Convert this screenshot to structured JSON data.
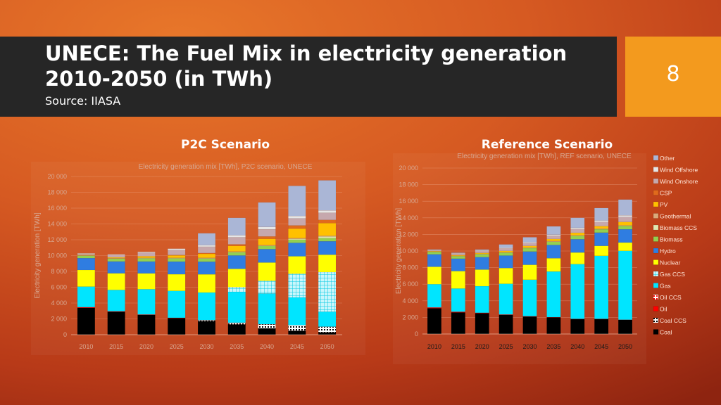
{
  "slide": {
    "title": "UNECE: The Fuel Mix in electricity generation 2010-2050  (in TWh)",
    "source": "Source: IIASA",
    "page_number": "8"
  },
  "headings": {
    "left": "P2C Scenario",
    "right": "Reference Scenario"
  },
  "colors": {
    "title_bar": "#262626",
    "page_box": "#f39a1e"
  },
  "legend": [
    {
      "label": "Other",
      "color": "#aab6d6"
    },
    {
      "label": "Wind Offshore",
      "color": "#e6e6e6"
    },
    {
      "label": "Wind Onshore",
      "color": "#c6a8ad"
    },
    {
      "label": "CSP",
      "color": "#e06a1c"
    },
    {
      "label": "PV",
      "color": "#ffc000"
    },
    {
      "label": "Geothermal",
      "color": "#d9a97a"
    },
    {
      "label": "Biomass CCS",
      "color": "#dfe6b0"
    },
    {
      "label": "Biomass",
      "color": "#92d050"
    },
    {
      "label": "Hydro",
      "color": "#2f7de1"
    },
    {
      "label": "Nuclear",
      "color": "#ffff00"
    },
    {
      "label": "Gas CCS",
      "color": "#9fe8f0"
    },
    {
      "label": "Gas",
      "color": "#00e5ff"
    },
    {
      "label": "Oil CCS",
      "color": "#ffb3b3"
    },
    {
      "label": "Oil",
      "color": "#ff0000"
    },
    {
      "label": "Coal CCS",
      "color": "#d0d0d0"
    },
    {
      "label": "Coal",
      "color": "#000000"
    }
  ],
  "chart_data": [
    {
      "type": "bar",
      "stacked": true,
      "title": "Electricity generation mix [TWh], P2C scenario, UNECE",
      "ylabel": "Electricity generation [TWh]",
      "ylim": [
        0,
        20000
      ],
      "yticks": [
        "0",
        "2 000",
        "4 000",
        "6 000",
        "8 000",
        "10 000",
        "12 000",
        "14 000",
        "16 000",
        "18 000",
        "20 000"
      ],
      "categories": [
        "2010",
        "2015",
        "2020",
        "2025",
        "2030",
        "2035",
        "2040",
        "2045",
        "2050"
      ],
      "series": [
        {
          "name": "Coal",
          "values": [
            3400,
            2900,
            2500,
            2100,
            1700,
            1300,
            800,
            500,
            300
          ]
        },
        {
          "name": "Coal CCS",
          "values": [
            0,
            0,
            0,
            0,
            100,
            200,
            500,
            700,
            700
          ]
        },
        {
          "name": "Oil",
          "values": [
            80,
            60,
            50,
            40,
            30,
            20,
            20,
            10,
            10
          ]
        },
        {
          "name": "Oil CCS",
          "values": [
            0,
            0,
            0,
            0,
            0,
            0,
            0,
            0,
            0
          ]
        },
        {
          "name": "Gas",
          "values": [
            2600,
            2700,
            3200,
            3400,
            3500,
            3900,
            3900,
            3500,
            1900
          ]
        },
        {
          "name": "Gas CCS",
          "values": [
            0,
            0,
            0,
            0,
            0,
            600,
            1600,
            3000,
            5000
          ]
        },
        {
          "name": "Nuclear",
          "values": [
            2100,
            2100,
            2000,
            2100,
            2300,
            2300,
            2300,
            2200,
            2200
          ]
        },
        {
          "name": "Hydro",
          "values": [
            1500,
            1500,
            1500,
            1600,
            1600,
            1700,
            1700,
            1700,
            1700
          ]
        },
        {
          "name": "Biomass",
          "values": [
            300,
            350,
            400,
            400,
            400,
            400,
            400,
            400,
            400
          ]
        },
        {
          "name": "Biomass CCS",
          "values": [
            0,
            0,
            0,
            0,
            0,
            0,
            0,
            100,
            200
          ]
        },
        {
          "name": "Geothermal",
          "values": [
            50,
            60,
            70,
            80,
            90,
            100,
            100,
            100,
            100
          ]
        },
        {
          "name": "PV",
          "values": [
            50,
            100,
            200,
            300,
            500,
            700,
            800,
            1200,
            1600
          ]
        },
        {
          "name": "CSP",
          "values": [
            0,
            0,
            0,
            50,
            100,
            200,
            300,
            400,
            400
          ]
        },
        {
          "name": "Wind Onshore",
          "values": [
            150,
            300,
            450,
            650,
            800,
            900,
            900,
            900,
            900
          ]
        },
        {
          "name": "Wind Offshore",
          "values": [
            50,
            80,
            100,
            150,
            200,
            250,
            300,
            300,
            300
          ]
        },
        {
          "name": "Other",
          "values": [
            0,
            0,
            0,
            0,
            1500,
            2200,
            3100,
            3800,
            3800
          ]
        }
      ]
    },
    {
      "type": "bar",
      "stacked": true,
      "title": "Electricity generation mix [TWh], REF scenario, UNECE",
      "ylabel": "Electricity generation [TWh]",
      "ylim": [
        0,
        20000
      ],
      "yticks": [
        "0",
        "2 000",
        "4 000",
        "6 000",
        "8 000",
        "10 000",
        "12 000",
        "14 000",
        "16 000",
        "18 000",
        "20 000"
      ],
      "categories": [
        "2010",
        "2015",
        "2020",
        "2025",
        "2030",
        "2035",
        "2040",
        "2045",
        "2050"
      ],
      "series": [
        {
          "name": "Coal",
          "values": [
            3100,
            2600,
            2500,
            2300,
            2100,
            2000,
            1800,
            1800,
            1700
          ]
        },
        {
          "name": "Coal CCS",
          "values": [
            0,
            0,
            0,
            0,
            0,
            0,
            0,
            0,
            0
          ]
        },
        {
          "name": "Oil",
          "values": [
            100,
            80,
            60,
            50,
            40,
            30,
            20,
            20,
            20
          ]
        },
        {
          "name": "Oil CCS",
          "values": [
            0,
            0,
            0,
            0,
            0,
            0,
            0,
            0,
            0
          ]
        },
        {
          "name": "Gas",
          "values": [
            2800,
            2800,
            3200,
            3700,
            4400,
            5500,
            6600,
            7600,
            8300
          ]
        },
        {
          "name": "Gas CCS",
          "values": [
            0,
            0,
            0,
            0,
            0,
            0,
            0,
            0,
            0
          ]
        },
        {
          "name": "Nuclear",
          "values": [
            2100,
            2100,
            2000,
            1900,
            1800,
            1600,
            1400,
            1200,
            1000
          ]
        },
        {
          "name": "Hydro",
          "values": [
            1500,
            1500,
            1500,
            1500,
            1600,
            1600,
            1600,
            1600,
            1600
          ]
        },
        {
          "name": "Biomass",
          "values": [
            300,
            300,
            350,
            350,
            400,
            400,
            400,
            400,
            400
          ]
        },
        {
          "name": "Biomass CCS",
          "values": [
            0,
            0,
            0,
            0,
            0,
            0,
            0,
            0,
            0
          ]
        },
        {
          "name": "Geothermal",
          "values": [
            50,
            50,
            60,
            60,
            70,
            70,
            80,
            80,
            80
          ]
        },
        {
          "name": "PV",
          "values": [
            50,
            80,
            100,
            150,
            200,
            250,
            300,
            300,
            400
          ]
        },
        {
          "name": "CSP",
          "values": [
            0,
            0,
            0,
            0,
            0,
            0,
            0,
            0,
            0
          ]
        },
        {
          "name": "Wind Onshore",
          "values": [
            150,
            200,
            250,
            300,
            350,
            400,
            450,
            500,
            600
          ]
        },
        {
          "name": "Wind Offshore",
          "values": [
            30,
            40,
            60,
            80,
            100,
            120,
            150,
            180,
            200
          ]
        },
        {
          "name": "Other",
          "values": [
            20,
            50,
            100,
            400,
            600,
            1000,
            1200,
            1500,
            1900
          ]
        }
      ]
    }
  ]
}
